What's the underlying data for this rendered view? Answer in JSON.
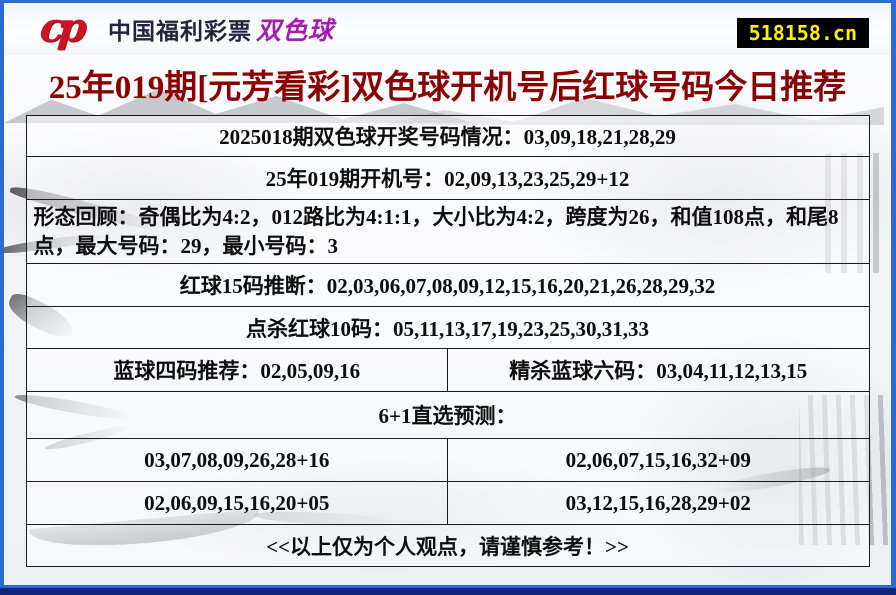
{
  "header": {
    "logo_glyph": "cp",
    "brand_name": "中国福利彩票",
    "brand_product": "双色球",
    "site_badge": "518158.cn"
  },
  "title": "25年019期[元芳看彩]双色球开机号后红球号码今日推荐",
  "table": {
    "draw_result": "2025018期双色球开奖号码情况：03,09,18,21,28,29",
    "machine_number": "25年019期开机号：02,09,13,23,25,29+12",
    "pattern_review": "形态回顾：奇偶比为4:2，012路比为4:1:1，大小比为4:2，跨度为26，和值108点，和尾8点，最大号码：29，最小号码：3",
    "red_15": "红球15码推断：02,03,06,07,08,09,12,15,16,20,21,26,28,29,32",
    "kill_red_10": "点杀红球10码：05,11,13,17,19,23,25,30,31,33",
    "blue_4": "蓝球四码推荐：02,05,09,16",
    "kill_blue_6": "精杀蓝球六码：03,04,11,12,13,15",
    "direct_header": "6+1直选预测：",
    "predictions": [
      [
        "03,07,08,09,26,28+16",
        "02,06,07,15,16,32+09"
      ],
      [
        "02,06,09,15,16,20+05",
        "03,12,15,16,28,29+02"
      ]
    ],
    "disclaimer": "<<以上仅为个人观点，请谨慎参考！>>"
  },
  "colors": {
    "frame_blue": "#2a6ad4",
    "frame_navy": "#13227d",
    "title_red": "#8b0000",
    "badge_bg": "#000000",
    "badge_text": "#ffee00",
    "brand_product_purple": "#a21caf",
    "logo_red": "#cc1320"
  }
}
